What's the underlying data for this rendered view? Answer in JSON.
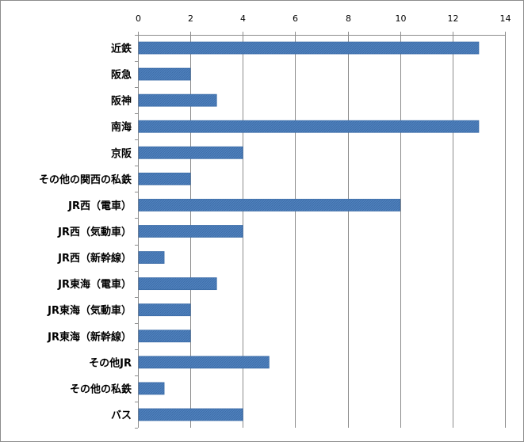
{
  "chart_data": {
    "type": "bar",
    "orientation": "horizontal",
    "title": "",
    "xlabel": "",
    "ylabel": "",
    "xlim": [
      0,
      14
    ],
    "x_ticks": [
      0,
      2,
      4,
      6,
      8,
      10,
      12,
      14
    ],
    "x_axis_position": "top",
    "grid": true,
    "legend": "none",
    "bar_color": "#4f81bd",
    "categories": [
      "近鉄",
      "阪急",
      "阪神",
      "南海",
      "京阪",
      "その他の関西の私鉄",
      "JR西（電車）",
      "JR西（気動車）",
      "JR西（新幹線）",
      "JR東海（電車）",
      "JR東海（気動車）",
      "JR東海（新幹線）",
      "その他JR",
      "その他の私鉄",
      "バス"
    ],
    "values": [
      13,
      2,
      3,
      13,
      4,
      2,
      10,
      4,
      1,
      3,
      2,
      2,
      5,
      1,
      4
    ]
  }
}
